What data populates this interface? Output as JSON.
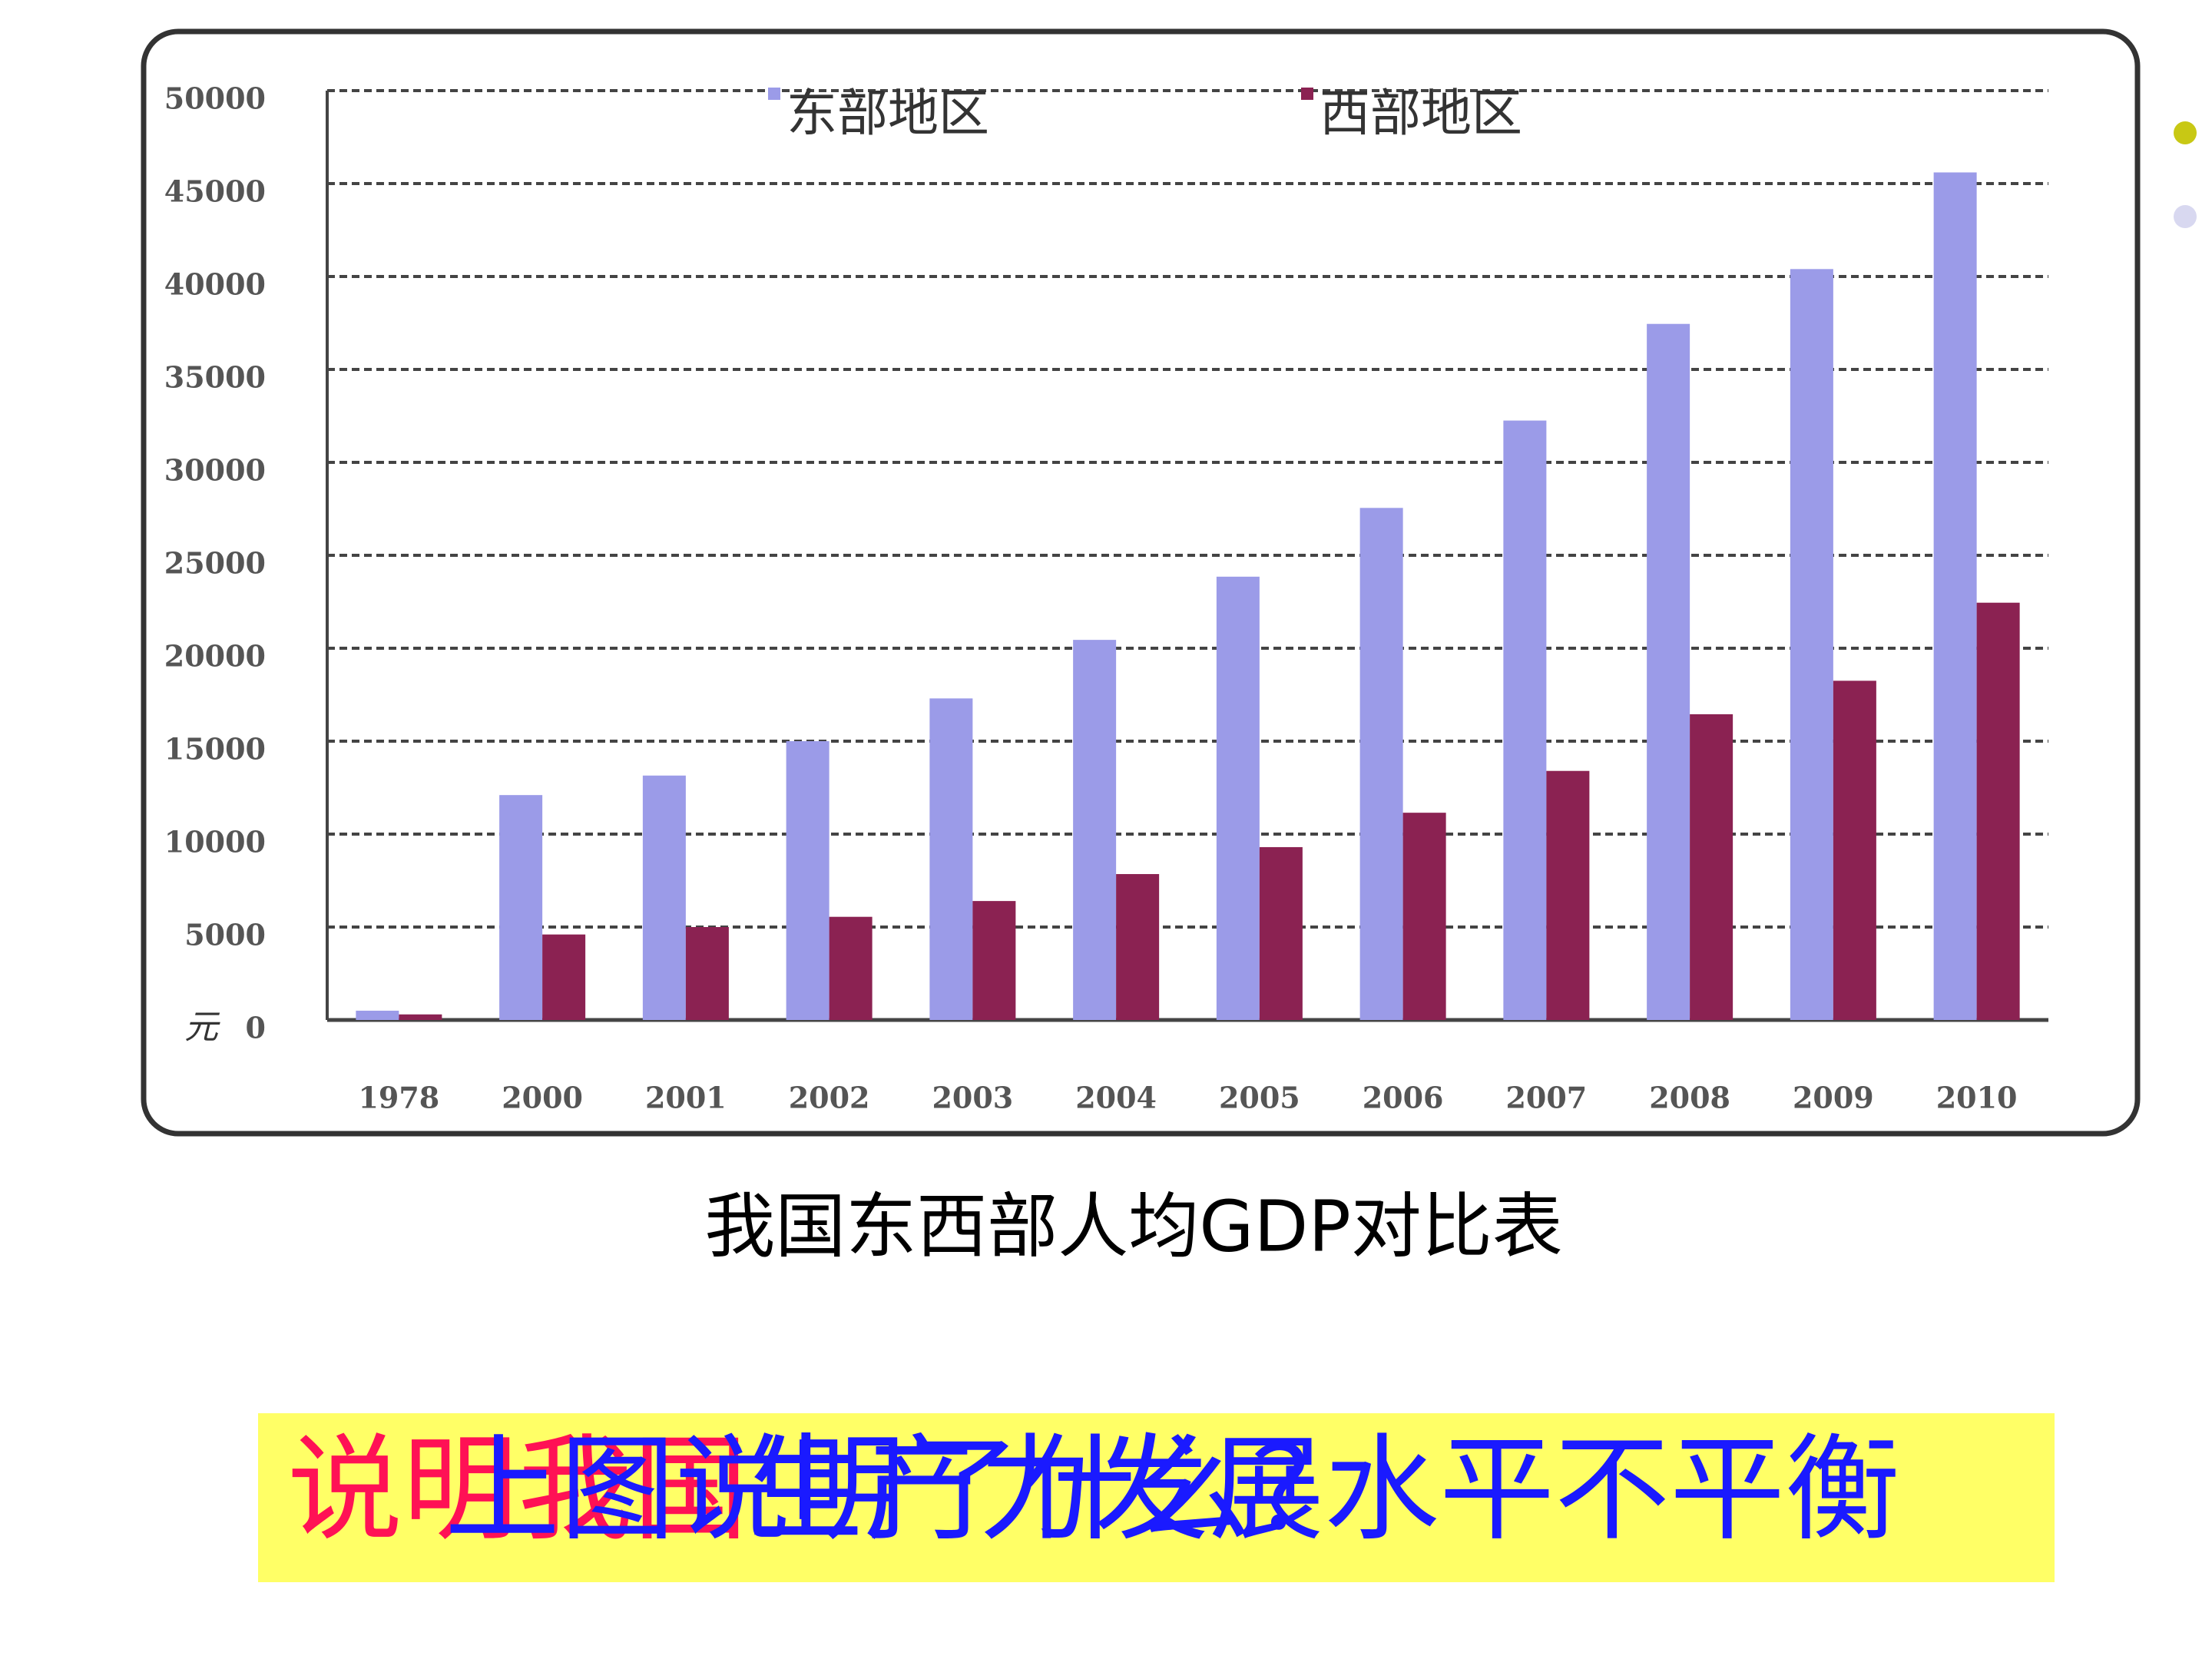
{
  "chart_data": {
    "type": "bar",
    "categories": [
      "1978",
      "2000",
      "2001",
      "2002",
      "2003",
      "2004",
      "2005",
      "2006",
      "2007",
      "2008",
      "2009",
      "2010"
    ],
    "series": [
      {
        "name": "东部地区",
        "color": "#9b9be8",
        "values": [
          500,
          12100,
          13150,
          15000,
          17300,
          20450,
          23850,
          27550,
          32250,
          37450,
          40400,
          45600
        ]
      },
      {
        "name": "西部地区",
        "color": "#8b2252",
        "values": [
          300,
          4600,
          5000,
          5550,
          6400,
          7850,
          9300,
          11150,
          13400,
          16450,
          18250,
          22450
        ]
      }
    ],
    "ylabel": "元",
    "ylim": [
      0,
      50000
    ],
    "yticks": [
      0,
      5000,
      10000,
      15000,
      20000,
      25000,
      30000,
      35000,
      40000,
      45000,
      50000
    ],
    "grid": true,
    "legend": "top"
  },
  "caption": "我国东西部人均GDP对比表",
  "banner": {
    "answer_red": "说明我国",
    "answer_blue": "生产力发展水平不平衡",
    "question": "上图说明了什么？"
  }
}
